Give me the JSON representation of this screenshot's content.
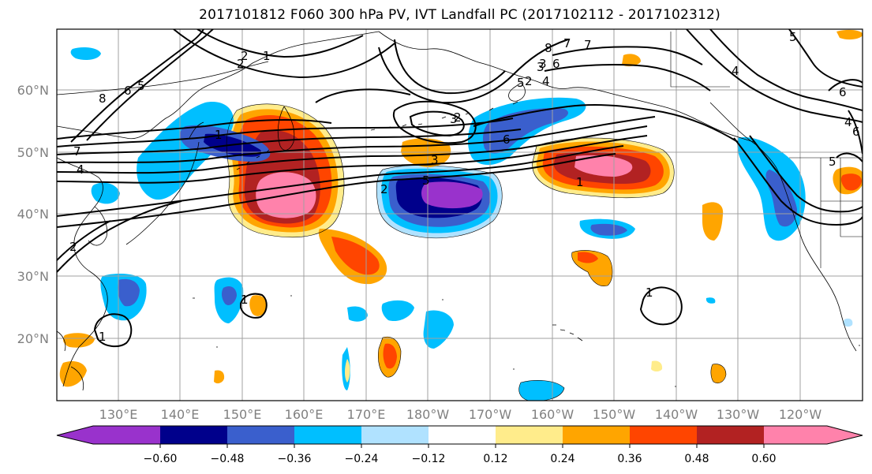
{
  "title": "2017101812 F060 300 hPa PV, IVT Landfall PC (2017102112 - 2017102312)",
  "map": {
    "lon_ticks": [
      "130°E",
      "140°E",
      "150°E",
      "160°E",
      "170°E",
      "180°W",
      "170°W",
      "160°W",
      "150°W",
      "140°W",
      "130°W",
      "120°W"
    ],
    "lat_ticks": [
      "60°N",
      "50°N",
      "40°N",
      "30°N",
      "20°N"
    ]
  },
  "colorbar": {
    "ticks": [
      "−0.60",
      "−0.48",
      "−0.36",
      "−0.24",
      "−0.12",
      "0.12",
      "0.24",
      "0.36",
      "0.48",
      "0.60"
    ],
    "colors": [
      "#9932CC",
      "#00008B",
      "#3A5FCD",
      "#00BFFF",
      "#B0E2FF",
      "#FFFFFF",
      "#FFEC8B",
      "#FFA500",
      "#FF4500",
      "#B22222",
      "#FF82AB"
    ]
  },
  "contour_labels": [
    "1",
    "2",
    "8",
    "6",
    "5",
    "7",
    "4",
    "2",
    "3",
    "5",
    "6",
    "2",
    "4",
    "6",
    "7",
    "3",
    "8",
    "6",
    "4",
    "5",
    "4",
    "1",
    "3",
    "2",
    "6",
    "1",
    "5",
    "3",
    "7",
    "2",
    "5",
    "1",
    "2",
    "1",
    "1"
  ]
}
